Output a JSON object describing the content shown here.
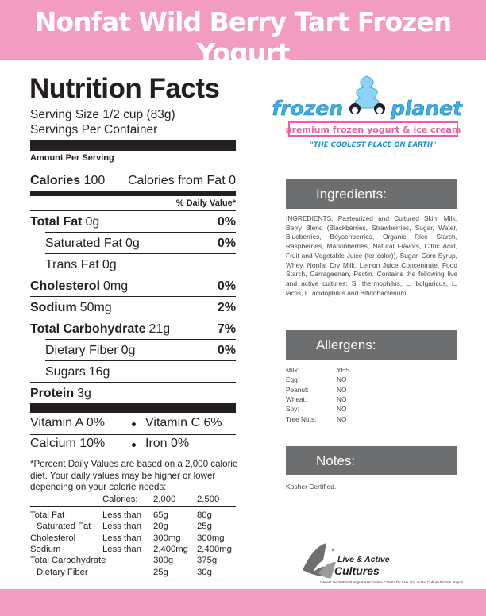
{
  "header": {
    "title": "Nonfat Wild Berry Tart Frozen Yogurt"
  },
  "nutrition": {
    "title": "Nutrition Facts",
    "serving_size": "Serving Size 1/2 cup (83g)",
    "servings_per_container": "Servings Per Container",
    "amount_per_serving": "Amount Per Serving",
    "calories": {
      "label": "Calories",
      "amount": "100"
    },
    "calories_from_fat": "Calories from Fat 0",
    "daily_value_header": "% Daily Value*",
    "nutrients": [
      {
        "label": "Total Fat",
        "amount": "0g",
        "dv": "0%",
        "sub": [
          {
            "label": "Saturated Fat",
            "amount": "0g",
            "dv": "0%"
          },
          {
            "label": "Trans Fat",
            "amount": "0g"
          }
        ]
      },
      {
        "label": "Cholesterol",
        "amount": "0mg",
        "dv": "0%"
      },
      {
        "label": "Sodium",
        "amount": "50mg",
        "dv": "2%"
      },
      {
        "label": "Total Carbohydrate",
        "amount": "21g",
        "dv": "7%",
        "sub": [
          {
            "label": "Dietary Fiber",
            "amount": "0g",
            "dv": "0%"
          },
          {
            "label": "Sugars",
            "amount": "16g"
          }
        ]
      },
      {
        "label": "Protein",
        "amount": "3g"
      }
    ],
    "vitamins": [
      [
        "Vitamin A 0%",
        "Vitamin C 6%"
      ],
      [
        "Calcium 10%",
        "Iron 0%"
      ]
    ],
    "footnote": "*Percent Daily Values are based on a 2,000 calorie diet. Your daily values may be higher or lower depending on your calorie needs:",
    "dv_table": {
      "header": [
        "Calories:",
        "2,000",
        "2,500"
      ],
      "rows": [
        {
          "name": "Total Fat",
          "limit": "Less than",
          "values": [
            "65g",
            "80g"
          ]
        },
        {
          "name": "Saturated Fat",
          "limit": "Less than",
          "values": [
            "20g",
            "25g"
          ]
        },
        {
          "name": "Cholesterol",
          "limit": "Less than",
          "values": [
            "300mg",
            "300mg"
          ]
        },
        {
          "name": "Sodium",
          "limit": "Less than",
          "values": [
            "2,400mg",
            "2,400mg"
          ]
        },
        {
          "name": "Total Carbohydrate",
          "values": [
            "300g",
            "375g"
          ]
        },
        {
          "name": "Dietary Fiber",
          "values": [
            "25g",
            "30g"
          ]
        }
      ]
    }
  },
  "logo": {
    "name_left": "frozen",
    "name_right": "planet",
    "tagline": "premium frozen yogurt & ice cream",
    "slogan": "\"THE COOLEST PLACE ON EARTH\""
  },
  "ingredients": {
    "heading": "Ingredients:",
    "text": "INGREDIENTS: Pasteurized and Cultured Skim Milk, Berry Blend (Blackberries, Strawberries, Sugar, Water, Blueberries, Boysenberries, Organic Rice Starch, Raspberries, Marionberries, Natural Flavors, Citric Acid, Fruit and Vegetable Juice (for color)), Sugar, Corn Syrup, Whey, Nonfat Dry Milk, Lemon Juice Concentrate, Food Starch, Carrageenan, Pectin. Contains the following live and active cultures: S. thermophilus, L. bulgaricus, L. lactis, L. acidophilus and Bifidobacterium."
  },
  "allergens": {
    "heading": "Allergens:",
    "rows": [
      [
        "Milk:",
        "YES"
      ],
      [
        "Egg:",
        "NO"
      ],
      [
        "Peanut:",
        "NO"
      ],
      [
        "Wheat:",
        "NO"
      ],
      [
        "Soy:",
        "NO"
      ],
      [
        "Tree Nuts:",
        "NO"
      ]
    ]
  },
  "notes": {
    "heading": "Notes:",
    "text": "Kosher Certified."
  },
  "cultures": {
    "line1": "Live & Active",
    "line2": "Cultures",
    "footnote": "*Meets the National Yogurt Association Criteria for Live and Active Culture Frozen Yogurt"
  }
}
